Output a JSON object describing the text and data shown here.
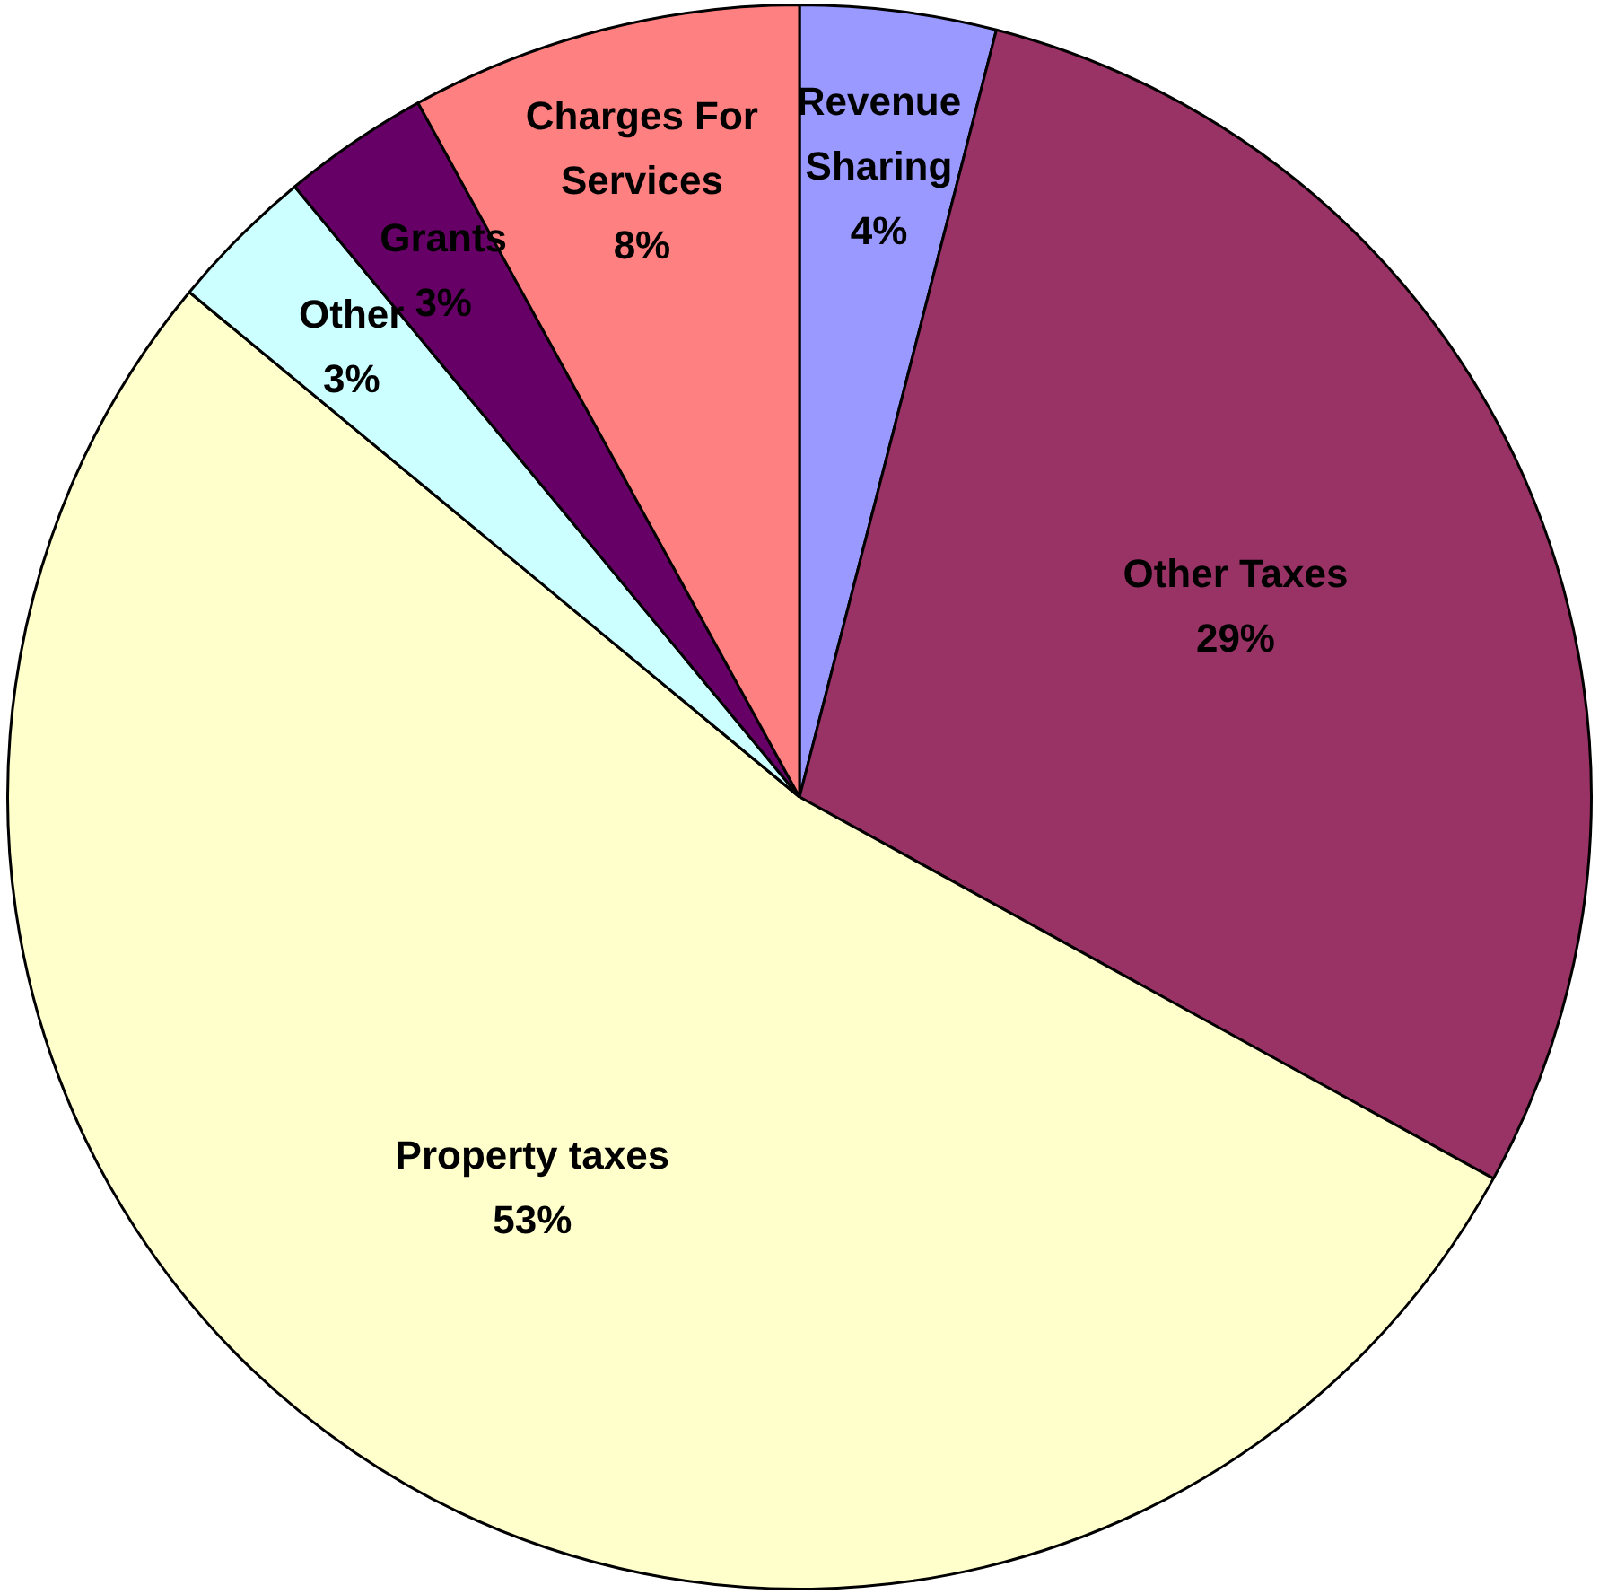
{
  "chart_data": {
    "type": "pie",
    "categories": [
      "Revenue Sharing",
      "Other Taxes",
      "Property taxes",
      "Other",
      "Grants",
      "Charges For Services"
    ],
    "values": [
      4,
      29,
      53,
      3,
      3,
      8
    ],
    "value_labels": [
      "4%",
      "29%",
      "53%",
      "3%",
      "3%",
      "8%"
    ],
    "colors": [
      "#9999ff",
      "#993366",
      "#ffffcc",
      "#ccffff",
      "#660066",
      "#ff8080"
    ],
    "legend": false
  }
}
